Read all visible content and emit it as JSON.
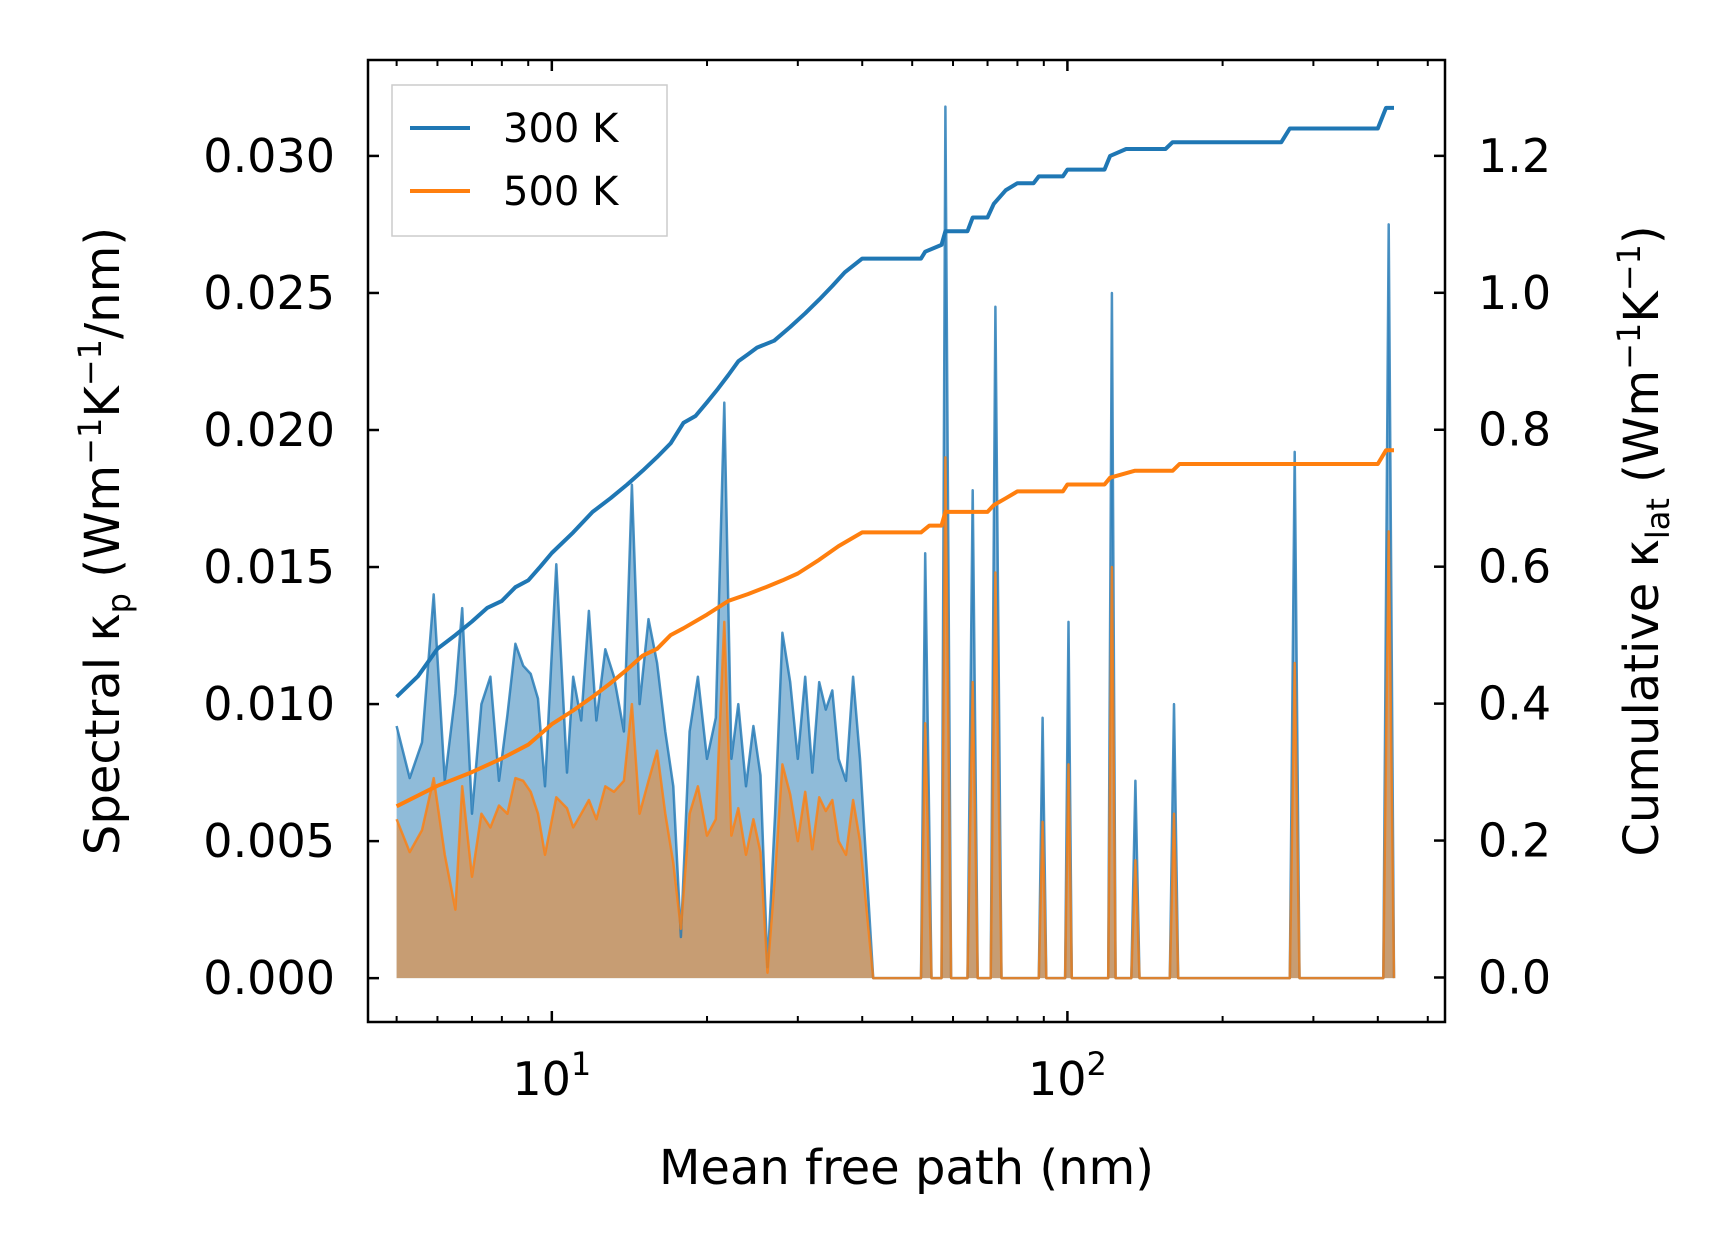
{
  "chart_data": {
    "type": "line",
    "xlabel": "Mean free path (nm)",
    "x_scale": "log",
    "xlim": [
      4.4,
      540
    ],
    "x_ticks": [
      {
        "base": "10",
        "exp": "1",
        "value": 10
      },
      {
        "base": "10",
        "exp": "2",
        "value": 100
      }
    ],
    "left_axis": {
      "label_main": "Spectral κ",
      "label_sub": "p",
      "label_rest": [
        {
          "t": " (Wm",
          "sup": false
        },
        {
          "t": "−1",
          "sup": true
        },
        {
          "t": "K",
          "sup": false
        },
        {
          "t": "−1",
          "sup": true
        },
        {
          "t": "/nm)",
          "sup": false
        }
      ],
      "ylim": [
        -0.0016,
        0.0335
      ],
      "ticks": [
        "0.000",
        "0.005",
        "0.010",
        "0.015",
        "0.020",
        "0.025",
        "0.030"
      ]
    },
    "right_axis": {
      "label_main": "Cumulative κ",
      "label_sub": "lat",
      "label_rest": [
        {
          "t": " (Wm",
          "sup": false
        },
        {
          "t": "−1",
          "sup": true
        },
        {
          "t": "K",
          "sup": false
        },
        {
          "t": "−1",
          "sup": true
        },
        {
          "t": ")",
          "sup": false
        }
      ],
      "ylim": [
        -0.065,
        1.34
      ],
      "ticks": [
        "0.0",
        "0.2",
        "0.4",
        "0.6",
        "0.8",
        "1.0",
        "1.2"
      ]
    },
    "legend": {
      "position": "top-left",
      "entries": [
        {
          "label": "300 K",
          "color": "#1f77b4"
        },
        {
          "label": "500 K",
          "color": "#ff7f0e"
        }
      ]
    },
    "series": [
      {
        "name": "300 K",
        "color": "#1f77b4",
        "spectral": [
          [
            5.0,
            0.0092
          ],
          [
            5.3,
            0.0073
          ],
          [
            5.6,
            0.0086
          ],
          [
            5.9,
            0.014
          ],
          [
            6.2,
            0.0072
          ],
          [
            6.5,
            0.0104
          ],
          [
            6.7,
            0.0135
          ],
          [
            7.0,
            0.006
          ],
          [
            7.3,
            0.01
          ],
          [
            7.6,
            0.011
          ],
          [
            7.9,
            0.0072
          ],
          [
            8.2,
            0.0096
          ],
          [
            8.5,
            0.0122
          ],
          [
            8.8,
            0.0114
          ],
          [
            9.1,
            0.0111
          ],
          [
            9.4,
            0.0102
          ],
          [
            9.7,
            0.007
          ],
          [
            10.2,
            0.0151
          ],
          [
            10.7,
            0.0075
          ],
          [
            11.0,
            0.011
          ],
          [
            11.4,
            0.0094
          ],
          [
            11.8,
            0.0134
          ],
          [
            12.2,
            0.0094
          ],
          [
            12.7,
            0.012
          ],
          [
            13.2,
            0.011
          ],
          [
            13.8,
            0.009
          ],
          [
            14.3,
            0.018
          ],
          [
            14.8,
            0.01
          ],
          [
            15.4,
            0.0131
          ],
          [
            16.0,
            0.0115
          ],
          [
            16.6,
            0.009
          ],
          [
            17.2,
            0.007
          ],
          [
            17.8,
            0.0015
          ],
          [
            18.5,
            0.009
          ],
          [
            19.2,
            0.011
          ],
          [
            20.0,
            0.008
          ],
          [
            20.8,
            0.0095
          ],
          [
            21.6,
            0.021
          ],
          [
            22.3,
            0.008
          ],
          [
            23.0,
            0.01
          ],
          [
            23.8,
            0.007
          ],
          [
            24.6,
            0.0092
          ],
          [
            25.4,
            0.0074
          ],
          [
            26.2,
            0.0004
          ],
          [
            27.1,
            0.006
          ],
          [
            28.0,
            0.0126
          ],
          [
            29.0,
            0.0108
          ],
          [
            30.0,
            0.008
          ],
          [
            31.0,
            0.011
          ],
          [
            32.0,
            0.0075
          ],
          [
            33.0,
            0.0108
          ],
          [
            34.0,
            0.0098
          ],
          [
            35.0,
            0.0105
          ],
          [
            36.0,
            0.008
          ],
          [
            37.2,
            0.0072
          ],
          [
            38.4,
            0.011
          ],
          [
            39.6,
            0.008
          ],
          [
            42.0,
            0.0
          ],
          [
            52.0,
            0.0
          ],
          [
            53.0,
            0.0155
          ],
          [
            54.5,
            0.0
          ],
          [
            57.0,
            0.0
          ],
          [
            58.0,
            0.0318
          ],
          [
            59.5,
            0.0
          ],
          [
            64.0,
            0.0
          ],
          [
            65.5,
            0.0178
          ],
          [
            67.0,
            0.0
          ],
          [
            71.0,
            0.0
          ],
          [
            72.5,
            0.0245
          ],
          [
            74.5,
            0.0
          ],
          [
            88.0,
            0.0
          ],
          [
            89.5,
            0.0095
          ],
          [
            91.0,
            0.0
          ],
          [
            99.0,
            0.0
          ],
          [
            100.5,
            0.013
          ],
          [
            102.0,
            0.0
          ],
          [
            120.0,
            0.0
          ],
          [
            122.0,
            0.025
          ],
          [
            124.0,
            0.0
          ],
          [
            133.0,
            0.0
          ],
          [
            135.5,
            0.0072
          ],
          [
            138.0,
            0.0
          ],
          [
            158.0,
            0.0
          ],
          [
            161.0,
            0.01
          ],
          [
            164.0,
            0.0
          ],
          [
            270.0,
            0.0
          ],
          [
            276.0,
            0.0192
          ],
          [
            282.0,
            0.0
          ],
          [
            410.0,
            0.0
          ],
          [
            420.0,
            0.0275
          ],
          [
            430.0,
            0.0
          ]
        ],
        "cumulative": [
          [
            5.0,
            0.41
          ],
          [
            5.5,
            0.44
          ],
          [
            6.0,
            0.48
          ],
          [
            6.5,
            0.5
          ],
          [
            7.0,
            0.52
          ],
          [
            7.5,
            0.54
          ],
          [
            8.0,
            0.55
          ],
          [
            8.5,
            0.57
          ],
          [
            9.0,
            0.58
          ],
          [
            9.5,
            0.6
          ],
          [
            10.0,
            0.62
          ],
          [
            11.0,
            0.65
          ],
          [
            12.0,
            0.68
          ],
          [
            13.0,
            0.7
          ],
          [
            14.0,
            0.72
          ],
          [
            15.0,
            0.74
          ],
          [
            16.0,
            0.76
          ],
          [
            17.0,
            0.78
          ],
          [
            18.0,
            0.81
          ],
          [
            19.0,
            0.82
          ],
          [
            20.0,
            0.84
          ],
          [
            21.0,
            0.86
          ],
          [
            22.0,
            0.88
          ],
          [
            23.0,
            0.9
          ],
          [
            24.0,
            0.91
          ],
          [
            25.0,
            0.92
          ],
          [
            27.0,
            0.93
          ],
          [
            29.0,
            0.95
          ],
          [
            31.0,
            0.97
          ],
          [
            33.0,
            0.99
          ],
          [
            35.0,
            1.01
          ],
          [
            37.0,
            1.03
          ],
          [
            40.0,
            1.05
          ],
          [
            52.0,
            1.05
          ],
          [
            53.0,
            1.06
          ],
          [
            57.0,
            1.07
          ],
          [
            58.0,
            1.09
          ],
          [
            64.0,
            1.09
          ],
          [
            65.5,
            1.11
          ],
          [
            70.0,
            1.11
          ],
          [
            72.0,
            1.13
          ],
          [
            76.0,
            1.15
          ],
          [
            80.0,
            1.16
          ],
          [
            86.0,
            1.16
          ],
          [
            88.0,
            1.17
          ],
          [
            98.0,
            1.17
          ],
          [
            100.0,
            1.18
          ],
          [
            118.0,
            1.18
          ],
          [
            121.0,
            1.2
          ],
          [
            130.0,
            1.21
          ],
          [
            135.0,
            1.21
          ],
          [
            155.0,
            1.21
          ],
          [
            160.0,
            1.22
          ],
          [
            260.0,
            1.22
          ],
          [
            270.0,
            1.24
          ],
          [
            400.0,
            1.24
          ],
          [
            415.0,
            1.27
          ],
          [
            430.0,
            1.27
          ]
        ]
      },
      {
        "name": "500 K",
        "color": "#ff7f0e",
        "spectral": [
          [
            5.0,
            0.0058
          ],
          [
            5.3,
            0.0046
          ],
          [
            5.6,
            0.0054
          ],
          [
            5.9,
            0.0073
          ],
          [
            6.2,
            0.0045
          ],
          [
            6.5,
            0.0025
          ],
          [
            6.7,
            0.007
          ],
          [
            7.0,
            0.0037
          ],
          [
            7.3,
            0.006
          ],
          [
            7.6,
            0.0055
          ],
          [
            7.9,
            0.0063
          ],
          [
            8.2,
            0.006
          ],
          [
            8.5,
            0.0073
          ],
          [
            8.8,
            0.0072
          ],
          [
            9.1,
            0.0068
          ],
          [
            9.4,
            0.006
          ],
          [
            9.7,
            0.0045
          ],
          [
            10.2,
            0.0066
          ],
          [
            10.7,
            0.0062
          ],
          [
            11.0,
            0.0055
          ],
          [
            11.4,
            0.006
          ],
          [
            11.8,
            0.0065
          ],
          [
            12.2,
            0.0058
          ],
          [
            12.7,
            0.007
          ],
          [
            13.2,
            0.0068
          ],
          [
            13.8,
            0.0072
          ],
          [
            14.3,
            0.01
          ],
          [
            14.8,
            0.006
          ],
          [
            15.4,
            0.0072
          ],
          [
            16.0,
            0.0083
          ],
          [
            16.6,
            0.006
          ],
          [
            17.2,
            0.0042
          ],
          [
            17.8,
            0.0018
          ],
          [
            18.5,
            0.006
          ],
          [
            19.2,
            0.007
          ],
          [
            20.0,
            0.0052
          ],
          [
            20.8,
            0.0058
          ],
          [
            21.6,
            0.013
          ],
          [
            22.3,
            0.0052
          ],
          [
            23.0,
            0.0062
          ],
          [
            23.8,
            0.0045
          ],
          [
            24.6,
            0.0058
          ],
          [
            25.4,
            0.0046
          ],
          [
            26.2,
            0.0002
          ],
          [
            27.1,
            0.0038
          ],
          [
            28.0,
            0.0078
          ],
          [
            29.0,
            0.0067
          ],
          [
            30.0,
            0.005
          ],
          [
            31.0,
            0.0068
          ],
          [
            32.0,
            0.0047
          ],
          [
            33.0,
            0.0066
          ],
          [
            34.0,
            0.0061
          ],
          [
            35.0,
            0.0065
          ],
          [
            36.0,
            0.005
          ],
          [
            37.2,
            0.0045
          ],
          [
            38.4,
            0.0065
          ],
          [
            39.6,
            0.005
          ],
          [
            42.0,
            0.0
          ],
          [
            52.0,
            0.0
          ],
          [
            53.0,
            0.0093
          ],
          [
            54.5,
            0.0
          ],
          [
            57.0,
            0.0
          ],
          [
            58.0,
            0.019
          ],
          [
            59.5,
            0.0
          ],
          [
            64.0,
            0.0
          ],
          [
            65.5,
            0.0108
          ],
          [
            67.0,
            0.0
          ],
          [
            71.0,
            0.0
          ],
          [
            72.5,
            0.0148
          ],
          [
            74.5,
            0.0
          ],
          [
            88.0,
            0.0
          ],
          [
            89.5,
            0.0057
          ],
          [
            91.0,
            0.0
          ],
          [
            99.0,
            0.0
          ],
          [
            100.5,
            0.0078
          ],
          [
            102.0,
            0.0
          ],
          [
            120.0,
            0.0
          ],
          [
            122.0,
            0.015
          ],
          [
            124.0,
            0.0
          ],
          [
            133.0,
            0.0
          ],
          [
            135.5,
            0.0043
          ],
          [
            138.0,
            0.0
          ],
          [
            158.0,
            0.0
          ],
          [
            161.0,
            0.006
          ],
          [
            164.0,
            0.0
          ],
          [
            270.0,
            0.0
          ],
          [
            276.0,
            0.0115
          ],
          [
            282.0,
            0.0
          ],
          [
            410.0,
            0.0
          ],
          [
            420.0,
            0.0163
          ],
          [
            430.0,
            0.0
          ]
        ],
        "cumulative": [
          [
            5.0,
            0.25
          ],
          [
            6.0,
            0.28
          ],
          [
            7.0,
            0.3
          ],
          [
            8.0,
            0.32
          ],
          [
            9.0,
            0.34
          ],
          [
            10.0,
            0.37
          ],
          [
            11.0,
            0.39
          ],
          [
            12.0,
            0.41
          ],
          [
            13.0,
            0.43
          ],
          [
            14.0,
            0.45
          ],
          [
            15.0,
            0.47
          ],
          [
            16.0,
            0.48
          ],
          [
            17.0,
            0.5
          ],
          [
            18.0,
            0.51
          ],
          [
            20.0,
            0.53
          ],
          [
            22.0,
            0.55
          ],
          [
            24.0,
            0.56
          ],
          [
            26.0,
            0.57
          ],
          [
            28.0,
            0.58
          ],
          [
            30.0,
            0.59
          ],
          [
            33.0,
            0.61
          ],
          [
            36.0,
            0.63
          ],
          [
            40.0,
            0.65
          ],
          [
            52.0,
            0.65
          ],
          [
            54.0,
            0.66
          ],
          [
            57.0,
            0.66
          ],
          [
            58.0,
            0.68
          ],
          [
            70.0,
            0.68
          ],
          [
            72.0,
            0.69
          ],
          [
            76.0,
            0.7
          ],
          [
            80.0,
            0.71
          ],
          [
            98.0,
            0.71
          ],
          [
            100.0,
            0.72
          ],
          [
            118.0,
            0.72
          ],
          [
            121.0,
            0.73
          ],
          [
            135.0,
            0.74
          ],
          [
            160.0,
            0.74
          ],
          [
            165.0,
            0.75
          ],
          [
            400.0,
            0.75
          ],
          [
            415.0,
            0.77
          ],
          [
            430.0,
            0.77
          ]
        ]
      }
    ]
  }
}
